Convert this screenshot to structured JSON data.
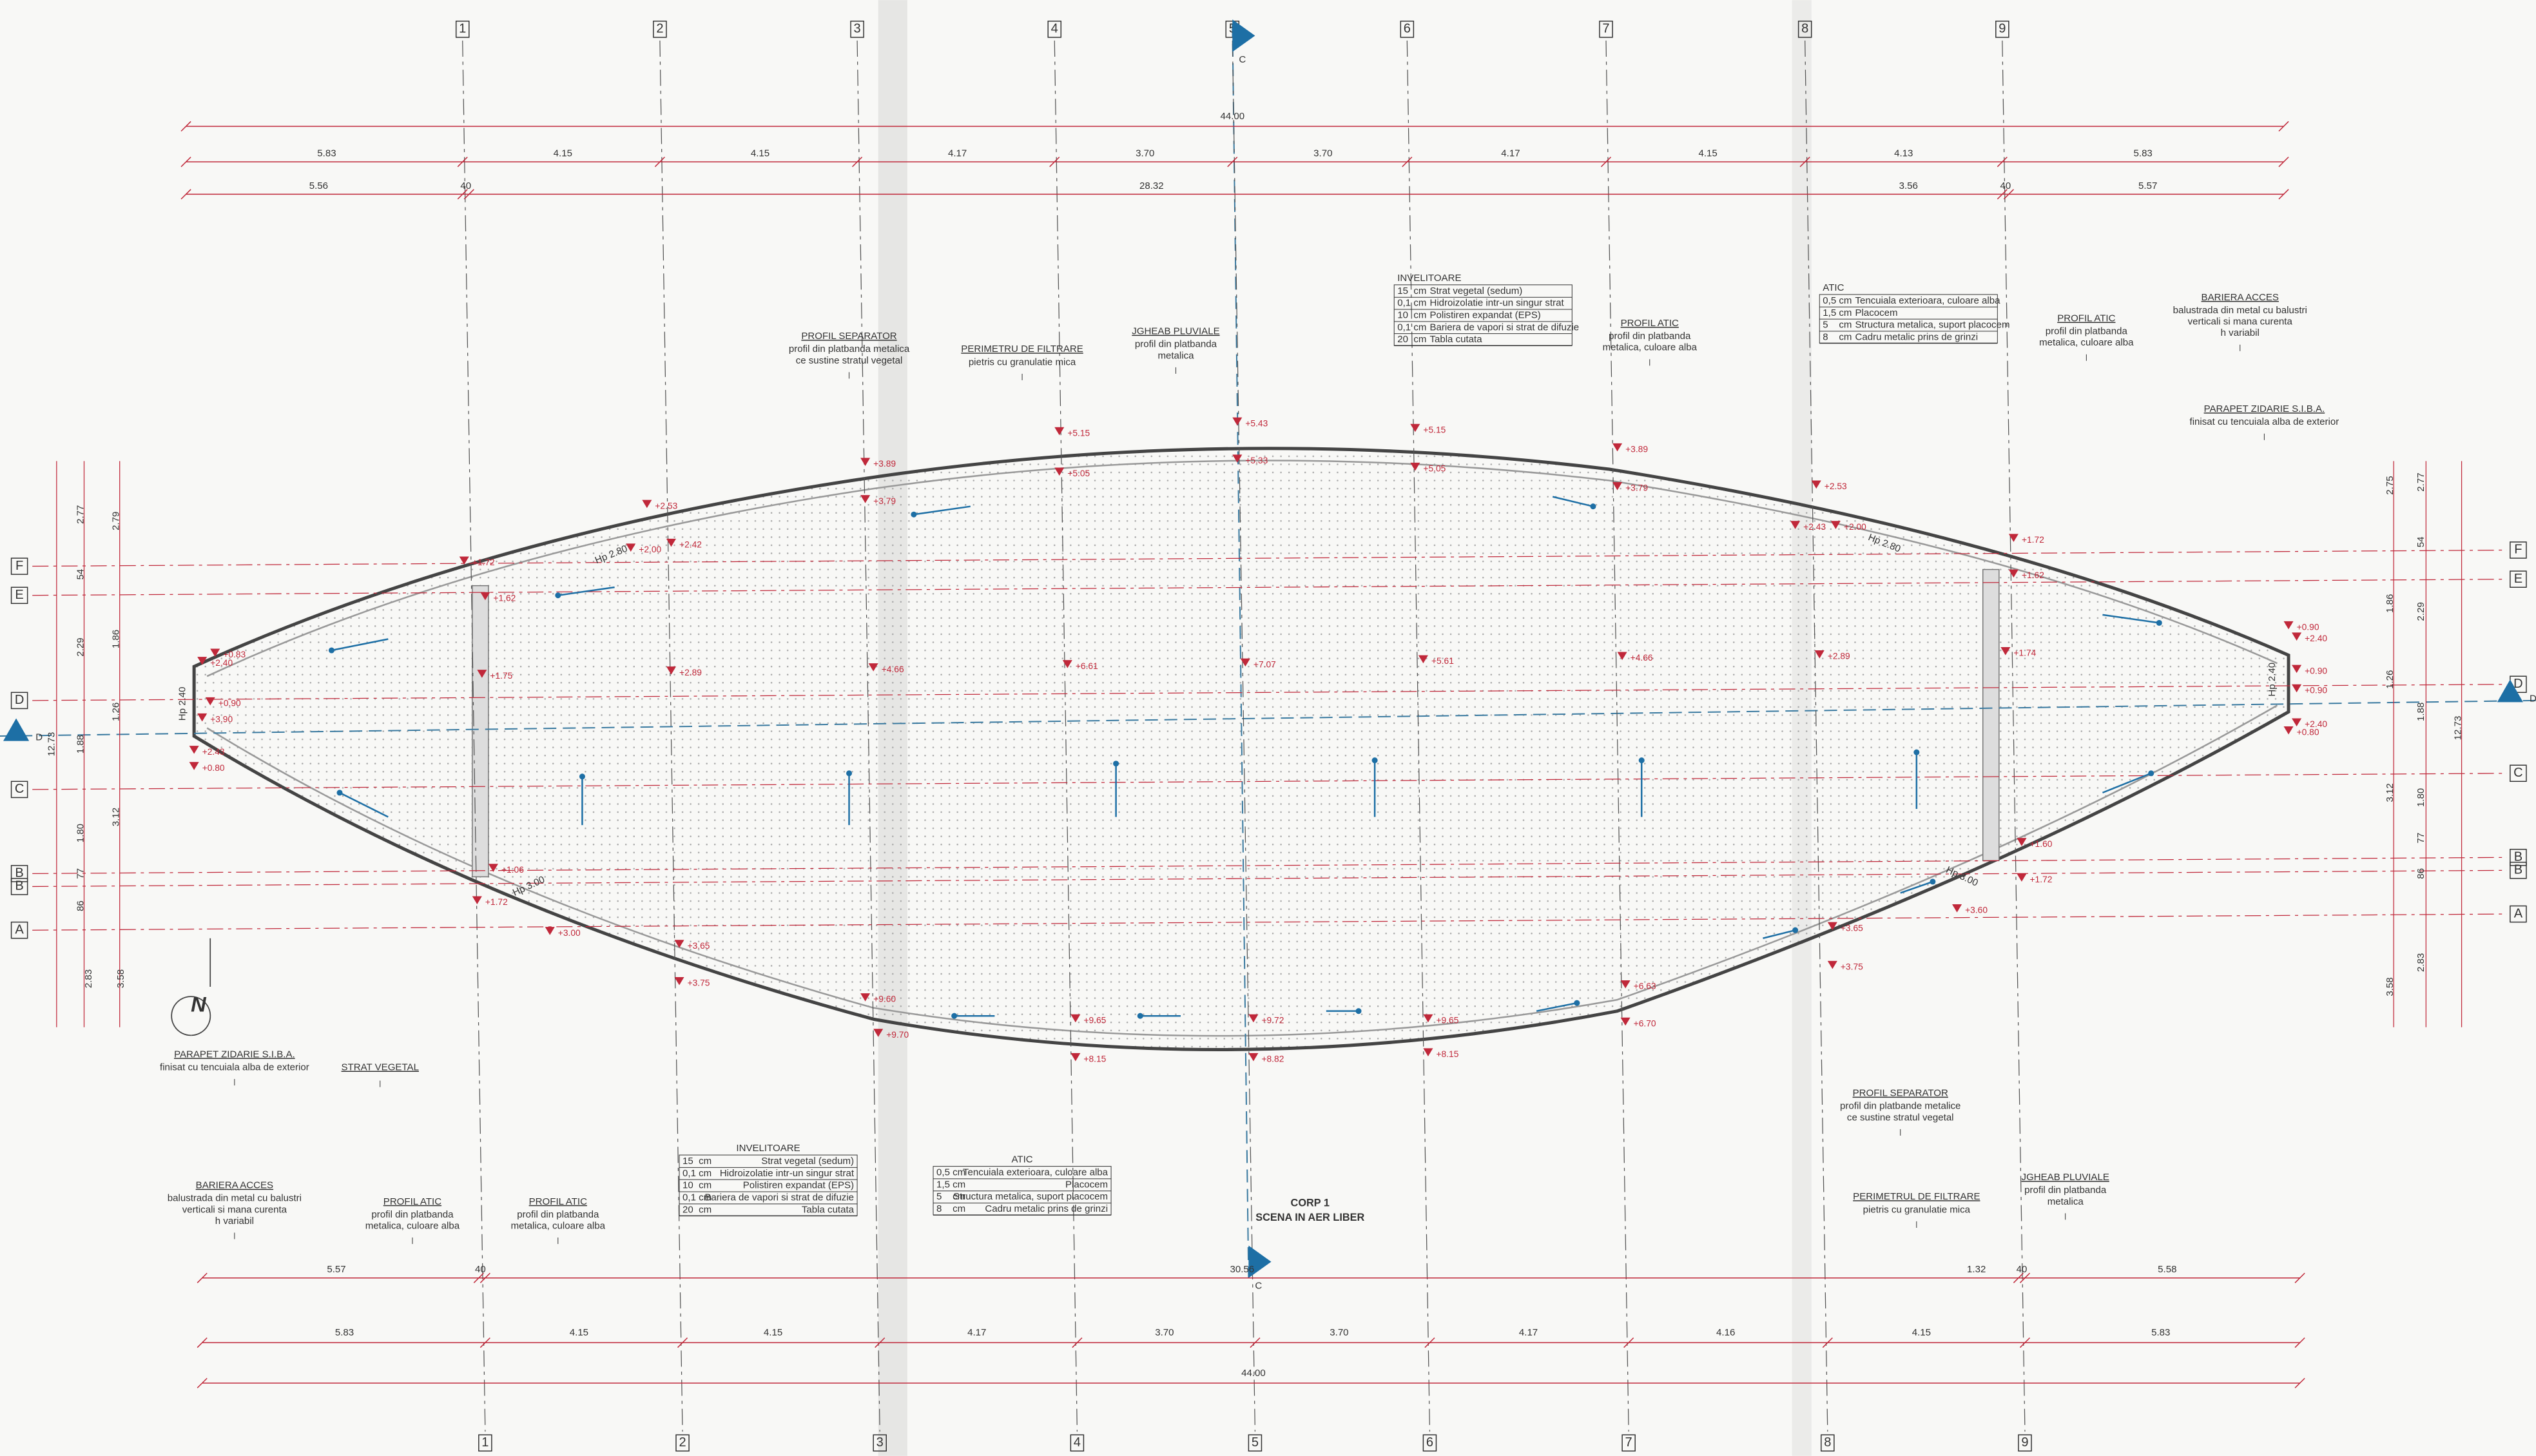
{
  "grid_columns": [
    "1",
    "2",
    "3",
    "4",
    "5",
    "6",
    "7",
    "8",
    "9"
  ],
  "grid_rows": [
    "F",
    "E",
    "D",
    "C",
    "B",
    "B",
    "A"
  ],
  "section_marks": [
    "C",
    "C",
    "D",
    "D"
  ],
  "top_dimensions": {
    "overall": "44.00",
    "segments": [
      "5.83",
      "4.15",
      "4.15",
      "4.17",
      "3.70",
      "3.70",
      "4.17",
      "4.15",
      "4.13",
      "5.83"
    ],
    "axes": [
      "5.56",
      "40",
      "28.32",
      "3.56",
      "40",
      "5.57"
    ]
  },
  "bottom_dimensions": {
    "axes": [
      "5.57",
      "40",
      "30.56",
      "1.32",
      "40",
      "5.58"
    ],
    "segments": [
      "5.83",
      "4.15",
      "4.15",
      "4.17",
      "3.70",
      "3.70",
      "4.17",
      "4.16",
      "4.15",
      "5.83"
    ],
    "overall": "44.00"
  },
  "elevations": [
    "+2.53",
    "+2.00",
    "+2.42",
    "+3.89",
    "+3.79",
    "+5.15",
    "+5.05",
    "+5.43",
    "+5.33",
    "+5.15",
    "+5.05",
    "+3.89",
    "+3.79",
    "+2.53",
    "+2.43",
    "+2.00",
    "+1.72",
    "+1.62",
    "+1.72",
    "+1.62",
    "+2.40",
    "+0.83",
    "+0.90",
    "+3.90",
    "+2.43",
    "+0.80",
    "+1.75",
    "+2.89",
    "+4.66",
    "+6.61",
    "+7.07",
    "+5.61",
    "+4.66",
    "+2.89",
    "+1.74",
    "+0.90",
    "+2.40",
    "+0.90",
    "+0.90",
    "+0.80",
    "+2.40",
    "+1.06",
    "+1.72",
    "+3.00",
    "+3.65",
    "+3.75",
    "+9.60",
    "+9.70",
    "+9.65",
    "+8.15",
    "+9.72",
    "+8.82",
    "+9.65",
    "+8.15",
    "+6.63",
    "+6.70",
    "+3.65",
    "+3.75",
    "+3.60",
    "+1.60",
    "+1.72"
  ],
  "slope_labels": [
    "Hp 2.80",
    "Hp 2.80",
    "Hp 2.40",
    "Hp 2.40",
    "Hp 3.00",
    "Hp 3.00"
  ],
  "side_dims_left": [
    "2.77",
    "2.79",
    "54",
    "1.86",
    "2.29",
    "1.26",
    "1.88",
    "12.73",
    "1.80",
    "3.12",
    "77",
    "86",
    "2.83",
    "3.58"
  ],
  "side_dims_right": [
    "2.75",
    "2.77",
    "54",
    "1.86",
    "2.29",
    "1.26",
    "1.88",
    "12.73",
    "3.12",
    "1.80",
    "77",
    "86",
    "3.58",
    "2.83"
  ],
  "north": "N",
  "annotations": [
    {
      "title": "PROFIL SEPARATOR",
      "lines": [
        "profil din platbanda metalica",
        "ce sustine stratul vegetal"
      ]
    },
    {
      "title": "PERIMETRU DE FILTRARE",
      "lines": [
        "pietris cu granulatie mica"
      ]
    },
    {
      "title": "JGHEAB PLUVIALE",
      "lines": [
        "profil din platbanda",
        "metalica"
      ]
    },
    {
      "title": "PROFIL ATIC",
      "lines": [
        "profil din platbanda",
        "metalica, culoare alba"
      ]
    },
    {
      "title": "PROFIL ATIC",
      "lines": [
        "profil din platbanda",
        "metalica, culoare alba"
      ]
    },
    {
      "title": "BARIERA ACCES",
      "lines": [
        "balustrada din metal cu balustri",
        "verticali si mana curenta",
        "h variabil"
      ]
    },
    {
      "title": "PARAPET ZIDARIE S.I.B.A.",
      "lines": [
        "finisat cu tencuiala alba de exterior"
      ]
    },
    {
      "title": "PARAPET ZIDARIE S.I.B.A.",
      "lines": [
        "finisat cu tencuiala alba de exterior"
      ]
    },
    {
      "title": "STRAT VEGETAL",
      "lines": []
    },
    {
      "title": "BARIERA ACCES",
      "lines": [
        "balustrada din metal cu balustri",
        "verticali si mana curenta",
        "h variabil"
      ]
    },
    {
      "title": "PROFIL ATIC",
      "lines": [
        "profil din platbanda",
        "metalica, culoare alba"
      ]
    },
    {
      "title": "PROFIL ATIC",
      "lines": [
        "profil din platbanda",
        "metalica, culoare alba"
      ]
    },
    {
      "title": "PROFIL SEPARATOR",
      "lines": [
        "profil din platbande metalice",
        "ce sustine stratul vegetal"
      ]
    },
    {
      "title": "PERIMETRUL DE FILTRARE",
      "lines": [
        "pietris cu granulatie mica"
      ]
    },
    {
      "title": "JGHEAB PLUVIALE",
      "lines": [
        "profil din platbanda",
        "metalica"
      ]
    }
  ],
  "roof_tables": [
    {
      "title": "INVELITOARE",
      "rows": [
        [
          "15",
          "cm",
          "Strat vegetal (sedum)"
        ],
        [
          "0,1",
          "cm",
          "Hidroizolatie intr-un singur strat"
        ],
        [
          "10",
          "cm",
          "Polistiren expandat (EPS)"
        ],
        [
          "0,1",
          "cm",
          "Bariera de vapori si strat de difuzie"
        ],
        [
          "20",
          "cm",
          "Tabla cutata"
        ]
      ]
    },
    {
      "title": "ATIC",
      "rows": [
        [
          "0,5",
          "cm",
          "Tencuiala exterioara, culoare alba"
        ],
        [
          "1,5",
          "cm",
          "Placocem"
        ],
        [
          "5",
          "cm",
          "Structura metalica, suport placocem"
        ],
        [
          "8",
          "cm",
          "Cadru metalic prins de grinzi"
        ]
      ]
    }
  ],
  "corp": {
    "title": "CORP 1",
    "subtitle": "SCENA IN AER LIBER"
  }
}
